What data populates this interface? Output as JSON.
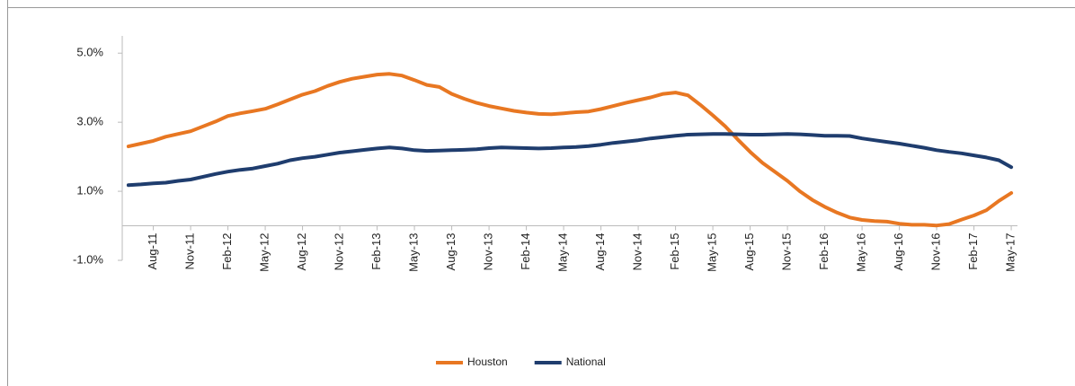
{
  "chart_data": {
    "type": "line",
    "categories": [
      null,
      null,
      "Aug-11",
      null,
      null,
      "Nov-11",
      null,
      null,
      "Feb-12",
      null,
      null,
      "May-12",
      null,
      null,
      "Aug-12",
      null,
      null,
      "Nov-12",
      null,
      null,
      "Feb-13",
      null,
      null,
      "May-13",
      null,
      null,
      "Aug-13",
      null,
      null,
      "Nov-13",
      null,
      null,
      "Feb-14",
      null,
      null,
      "May-14",
      null,
      null,
      "Aug-14",
      null,
      null,
      "Nov-14",
      null,
      null,
      "Feb-15",
      null,
      null,
      "May-15",
      null,
      null,
      "Aug-15",
      null,
      null,
      "Nov-15",
      null,
      null,
      "Feb-16",
      null,
      null,
      "May-16",
      null,
      null,
      "Aug-16",
      null,
      null,
      "Nov-16",
      null,
      null,
      "Feb-17",
      null,
      null,
      "May-17"
    ],
    "series": [
      {
        "name": "Houston",
        "color": "#e87722",
        "values": [
          2.3,
          2.38,
          2.46,
          2.58,
          2.66,
          2.74,
          2.88,
          3.02,
          3.18,
          3.26,
          3.32,
          3.39,
          3.52,
          3.66,
          3.8,
          3.9,
          4.05,
          4.17,
          4.26,
          4.32,
          4.38,
          4.4,
          4.35,
          4.22,
          4.08,
          4.02,
          3.82,
          3.68,
          3.56,
          3.47,
          3.4,
          3.33,
          3.28,
          3.24,
          3.23,
          3.26,
          3.29,
          3.31,
          3.38,
          3.47,
          3.56,
          3.64,
          3.72,
          3.82,
          3.86,
          3.78,
          3.5,
          3.2,
          2.88,
          2.5,
          2.14,
          1.82,
          1.56,
          1.3,
          1.0,
          0.75,
          0.55,
          0.38,
          0.24,
          0.17,
          0.14,
          0.12,
          0.06,
          0.03,
          0.03,
          0.01,
          0.05,
          0.18,
          0.3,
          0.45,
          0.72,
          0.95
        ]
      },
      {
        "name": "National",
        "color": "#1f3d6e",
        "values": [
          1.18,
          1.2,
          1.23,
          1.25,
          1.3,
          1.34,
          1.42,
          1.5,
          1.57,
          1.62,
          1.66,
          1.73,
          1.8,
          1.9,
          1.96,
          2.0,
          2.06,
          2.12,
          2.16,
          2.2,
          2.24,
          2.27,
          2.24,
          2.19,
          2.17,
          2.18,
          2.19,
          2.2,
          2.22,
          2.25,
          2.27,
          2.26,
          2.25,
          2.24,
          2.25,
          2.27,
          2.28,
          2.31,
          2.35,
          2.4,
          2.44,
          2.48,
          2.53,
          2.57,
          2.61,
          2.64,
          2.65,
          2.66,
          2.66,
          2.65,
          2.64,
          2.64,
          2.65,
          2.66,
          2.65,
          2.63,
          2.61,
          2.61,
          2.6,
          2.53,
          2.48,
          2.43,
          2.38,
          2.32,
          2.26,
          2.19,
          2.14,
          2.1,
          2.04,
          1.98,
          1.9,
          1.7
        ]
      }
    ],
    "ylim": [
      -1,
      5.5
    ],
    "yticks": [
      {
        "value": -1,
        "label": "-1.0%"
      },
      {
        "value": 1,
        "label": "1.0%"
      },
      {
        "value": 3,
        "label": "3.0%"
      },
      {
        "value": 5,
        "label": "5.0%"
      }
    ],
    "legend": "bottom"
  }
}
